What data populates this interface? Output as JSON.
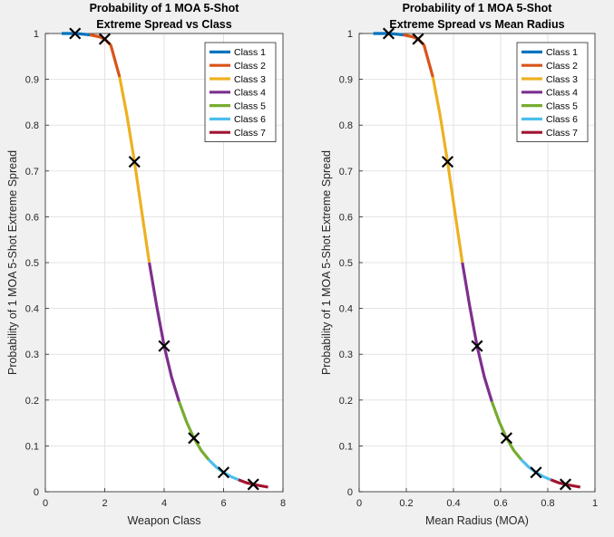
{
  "chart_data": [
    {
      "type": "line",
      "title_lines": [
        "Probability of 1 MOA 5-Shot",
        "Extreme Spread vs Class"
      ],
      "xlabel": "Weapon Class",
      "ylabel": "Probability of 1 MOA 5-Shot Extreme Spread",
      "xlim": [
        0,
        8
      ],
      "ylim": [
        0,
        1
      ],
      "xticks": [
        0,
        2,
        4,
        6,
        8
      ],
      "yticks": [
        0,
        0.1,
        0.2,
        0.3,
        0.4,
        0.5,
        0.6,
        0.7,
        0.8,
        0.9,
        1
      ],
      "grid": true,
      "legend_placement": "top-right",
      "series": [
        {
          "name": "Class 1",
          "color": "#0072BD",
          "x": [
            0.55,
            0.8,
            1.0,
            1.2,
            1.5
          ],
          "y": [
            1.0,
            1.0,
            1.0,
            0.999,
            0.997
          ]
        },
        {
          "name": "Class 2",
          "color": "#D95319",
          "x": [
            1.5,
            1.8,
            2.0,
            2.2,
            2.5
          ],
          "y": [
            0.997,
            0.993,
            0.988,
            0.975,
            0.905
          ]
        },
        {
          "name": "Class 3",
          "color": "#EDB120",
          "x": [
            2.5,
            2.75,
            3.0,
            3.25,
            3.5
          ],
          "y": [
            0.905,
            0.82,
            0.72,
            0.61,
            0.5
          ]
        },
        {
          "name": "Class 4",
          "color": "#7E2F8E",
          "x": [
            3.5,
            3.75,
            4.0,
            4.25,
            4.5
          ],
          "y": [
            0.5,
            0.405,
            0.318,
            0.25,
            0.197
          ]
        },
        {
          "name": "Class 5",
          "color": "#77AC30",
          "x": [
            4.5,
            4.75,
            5.0,
            5.25,
            5.5
          ],
          "y": [
            0.197,
            0.153,
            0.117,
            0.09,
            0.07
          ]
        },
        {
          "name": "Class 6",
          "color": "#4DBEEE",
          "x": [
            5.5,
            5.75,
            6.0,
            6.25,
            6.5
          ],
          "y": [
            0.07,
            0.054,
            0.042,
            0.033,
            0.026
          ]
        },
        {
          "name": "Class 7",
          "color": "#A2142F",
          "x": [
            6.5,
            6.75,
            7.0,
            7.25,
            7.5
          ],
          "y": [
            0.026,
            0.02,
            0.016,
            0.013,
            0.01
          ]
        }
      ],
      "markers": {
        "symbol": "x",
        "color": "#000000",
        "x": [
          1,
          2,
          3,
          4,
          5,
          6,
          7
        ],
        "y": [
          1.0,
          0.988,
          0.72,
          0.318,
          0.117,
          0.042,
          0.016
        ]
      }
    },
    {
      "type": "line",
      "title_lines": [
        "Probability of 1 MOA 5-Shot",
        "Extreme Spread vs Mean Radius"
      ],
      "xlabel": "Mean Radius (MOA)",
      "ylabel": "Probability of 1 MOA 5-Shot Extreme Spread",
      "xlim": [
        0,
        1
      ],
      "ylim": [
        0,
        1
      ],
      "xticks": [
        0,
        0.2,
        0.4,
        0.6,
        0.8,
        1
      ],
      "yticks": [
        0,
        0.1,
        0.2,
        0.3,
        0.4,
        0.5,
        0.6,
        0.7,
        0.8,
        0.9,
        1
      ],
      "grid": true,
      "legend_placement": "top-right",
      "series": [
        {
          "name": "Class 1",
          "color": "#0072BD",
          "x": [
            0.06,
            0.1,
            0.125,
            0.15,
            0.1875
          ],
          "y": [
            1.0,
            1.0,
            1.0,
            0.999,
            0.997
          ]
        },
        {
          "name": "Class 2",
          "color": "#D95319",
          "x": [
            0.1875,
            0.225,
            0.25,
            0.275,
            0.3125
          ],
          "y": [
            0.997,
            0.993,
            0.988,
            0.975,
            0.905
          ]
        },
        {
          "name": "Class 3",
          "color": "#EDB120",
          "x": [
            0.3125,
            0.344,
            0.375,
            0.406,
            0.4375
          ],
          "y": [
            0.905,
            0.82,
            0.72,
            0.61,
            0.5
          ]
        },
        {
          "name": "Class 4",
          "color": "#7E2F8E",
          "x": [
            0.4375,
            0.469,
            0.5,
            0.531,
            0.5625
          ],
          "y": [
            0.5,
            0.405,
            0.318,
            0.25,
            0.197
          ]
        },
        {
          "name": "Class 5",
          "color": "#77AC30",
          "x": [
            0.5625,
            0.594,
            0.625,
            0.656,
            0.6875
          ],
          "y": [
            0.197,
            0.153,
            0.117,
            0.09,
            0.07
          ]
        },
        {
          "name": "Class 6",
          "color": "#4DBEEE",
          "x": [
            0.6875,
            0.719,
            0.75,
            0.781,
            0.8125
          ],
          "y": [
            0.07,
            0.054,
            0.042,
            0.033,
            0.026
          ]
        },
        {
          "name": "Class 7",
          "color": "#A2142F",
          "x": [
            0.8125,
            0.844,
            0.875,
            0.906,
            0.9375
          ],
          "y": [
            0.026,
            0.02,
            0.016,
            0.013,
            0.01
          ]
        }
      ],
      "markers": {
        "symbol": "x",
        "color": "#000000",
        "x": [
          0.125,
          0.25,
          0.375,
          0.5,
          0.625,
          0.75,
          0.875
        ],
        "y": [
          1.0,
          0.988,
          0.72,
          0.318,
          0.117,
          0.042,
          0.016
        ]
      }
    }
  ]
}
